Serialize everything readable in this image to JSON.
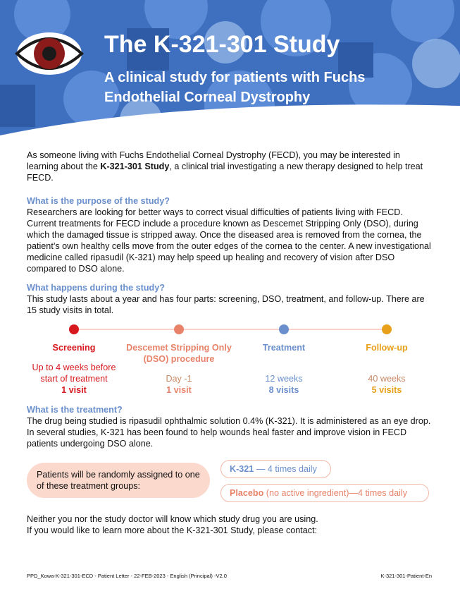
{
  "header": {
    "title": "The K-321-301 Study",
    "subtitle": "A clinical study for patients with Fuchs Endothelial Corneal Dystrophy"
  },
  "intro": {
    "parts": [
      "As someone living with Fuchs Endothelial Corneal Dystrophy (FECD), you may be interested in learning about the ",
      "K-321-301 Study",
      ", a clinical trial investigating a new therapy designed to help treat FECD."
    ]
  },
  "purpose": {
    "heading": "What is the purpose of the study?",
    "body": "Researchers are looking for better ways to correct visual difficulties of patients living with FECD. Current treatments for FECD include a procedure known as Descemet Stripping Only (DSO), during which the damaged tissue is stripped away. Once the diseased area is removed from the cornea, the patient’s own healthy cells move from the outer edges of the cornea to the center. A new investigational medicine called ripasudil (K-321) may help speed up healing and recovery of vision after DSO compared to DSO alone."
  },
  "happens": {
    "heading": "What happens during the study?",
    "body": "This study lasts about a year and has four parts: screening, DSO, treatment, and follow-up. There are 15 study visits in total."
  },
  "timeline": [
    {
      "label": "Screening",
      "detail": "Up to 4 weeks before start of treatment",
      "visits": "1 visit"
    },
    {
      "label": "Descemet Stripping Only (DSO) procedure",
      "detail": "Day -1",
      "visits": "1 visit"
    },
    {
      "label": "Treatment",
      "detail": "12 weeks",
      "visits": "8 visits"
    },
    {
      "label": "Follow-up",
      "detail": "40 weeks",
      "visits": "5 visits"
    }
  ],
  "treatment": {
    "heading": "What is the treatment?",
    "body": "The drug being studied is ripasudil ophthalmic solution 0.4% (K-321). It is administered as an eye drop. In several studies, K-321 has been found to help wounds heal faster and improve vision in FECD patients undergoing DSO alone."
  },
  "groups": {
    "intro": "Patients will be randomly assigned to one of these treatment groups:",
    "items": [
      {
        "name": "K-321",
        "rest": " — 4 times daily"
      },
      {
        "name": "Placebo",
        "rest": " (no active ingredient)—4 times daily"
      }
    ]
  },
  "closing": [
    "Neither you nor the study doctor will know which study drug you are using.",
    "If you would like to learn more about the K-321-301 Study, please contact:"
  ],
  "footer": {
    "left": "PPD_Kowa-K-321-301-ECD - Patient Letter - 22-FEB-2023 - English (Principal) -V2.0",
    "right": "K-321-301-Patient-En"
  }
}
